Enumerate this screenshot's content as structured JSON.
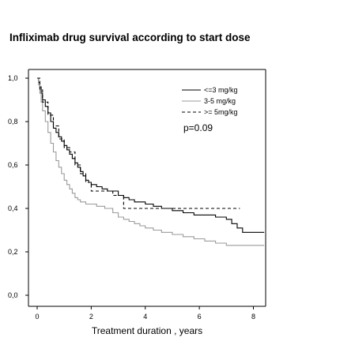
{
  "chart_data": {
    "type": "line",
    "step": true,
    "title": "Infliximab drug survival according to start dose",
    "xlabel": "Treatment duration , years",
    "ylabel": "",
    "xlim": [
      0,
      8.4
    ],
    "ylim": [
      0,
      1
    ],
    "x_ticks": [
      0,
      2,
      4,
      6,
      8
    ],
    "y_ticks": [
      0,
      0.2,
      0.4,
      0.6,
      0.8,
      1
    ],
    "x_tick_labels": [
      "0",
      "2",
      "4",
      "6",
      "8"
    ],
    "y_tick_labels": [
      "0,0",
      "0,2",
      "0,4",
      "0,6",
      "0,8",
      "1,0"
    ],
    "grid": false,
    "legend_position": "top-right",
    "annotation": "p=0.09",
    "series": [
      {
        "name": "<=3 mg/kg",
        "color": "#000000",
        "dash": "solid",
        "x": [
          0,
          0.05,
          0.1,
          0.15,
          0.2,
          0.3,
          0.4,
          0.5,
          0.6,
          0.7,
          0.8,
          0.9,
          1.0,
          1.1,
          1.2,
          1.3,
          1.4,
          1.5,
          1.6,
          1.7,
          1.8,
          1.9,
          2.0,
          2.2,
          2.4,
          2.6,
          2.8,
          3.0,
          3.2,
          3.4,
          3.6,
          3.8,
          4.0,
          4.3,
          4.6,
          5.0,
          5.4,
          5.8,
          6.2,
          6.6,
          7.0,
          7.2,
          7.4,
          7.6,
          8.4
        ],
        "y": [
          1.0,
          0.98,
          0.96,
          0.93,
          0.9,
          0.87,
          0.84,
          0.8,
          0.77,
          0.75,
          0.73,
          0.71,
          0.69,
          0.67,
          0.65,
          0.63,
          0.61,
          0.59,
          0.57,
          0.55,
          0.53,
          0.52,
          0.51,
          0.5,
          0.49,
          0.48,
          0.48,
          0.46,
          0.45,
          0.44,
          0.43,
          0.43,
          0.42,
          0.41,
          0.4,
          0.39,
          0.38,
          0.37,
          0.37,
          0.36,
          0.35,
          0.33,
          0.31,
          0.29,
          0.29
        ]
      },
      {
        "name": "3-5 mg/kg",
        "color": "#9a9a9a",
        "dash": "solid",
        "x": [
          0,
          0.05,
          0.1,
          0.15,
          0.2,
          0.3,
          0.4,
          0.5,
          0.6,
          0.7,
          0.8,
          0.9,
          1.0,
          1.1,
          1.2,
          1.3,
          1.4,
          1.5,
          1.6,
          1.8,
          2.0,
          2.2,
          2.5,
          2.8,
          3.0,
          3.2,
          3.4,
          3.6,
          3.8,
          4.0,
          4.3,
          4.6,
          5.0,
          5.4,
          5.8,
          6.2,
          6.6,
          7.0,
          7.4,
          8.4
        ],
        "y": [
          1.0,
          0.97,
          0.93,
          0.89,
          0.85,
          0.8,
          0.75,
          0.7,
          0.66,
          0.62,
          0.59,
          0.56,
          0.53,
          0.51,
          0.49,
          0.47,
          0.45,
          0.44,
          0.43,
          0.42,
          0.42,
          0.41,
          0.4,
          0.38,
          0.36,
          0.35,
          0.34,
          0.33,
          0.32,
          0.31,
          0.3,
          0.29,
          0.28,
          0.27,
          0.26,
          0.25,
          0.24,
          0.23,
          0.23,
          0.23
        ]
      },
      {
        "name": ">= 5mg/kg",
        "color": "#000000",
        "dash": "dashed",
        "x": [
          0,
          0.1,
          0.2,
          0.4,
          0.6,
          0.8,
          1.0,
          1.2,
          1.4,
          1.6,
          1.8,
          2.0,
          2.5,
          2.8,
          3.0,
          3.2,
          7.5
        ],
        "y": [
          1.0,
          0.95,
          0.89,
          0.83,
          0.78,
          0.72,
          0.68,
          0.66,
          0.6,
          0.56,
          0.52,
          0.48,
          0.48,
          0.46,
          0.46,
          0.4,
          0.4
        ]
      }
    ]
  }
}
